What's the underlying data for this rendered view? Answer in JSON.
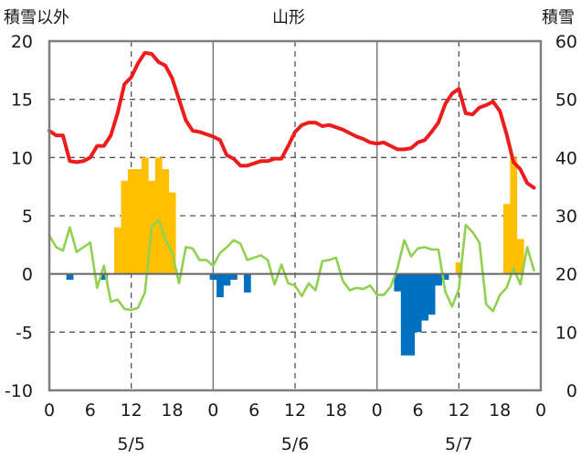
{
  "chart_data": {
    "type": "bar+line",
    "title": "山形",
    "left_axis_label": "積雪以外",
    "right_axis_label": "積雪",
    "left_ylim": [
      -10,
      20
    ],
    "left_ticks": [
      "20",
      "15",
      "10",
      "5",
      "0",
      "-5",
      "-10"
    ],
    "right_ylim": [
      0,
      60
    ],
    "right_ticks": [
      "60",
      "50",
      "40",
      "30",
      "20",
      "10",
      "0"
    ],
    "x_hour_labels": [
      "0",
      "6",
      "12",
      "18",
      "0",
      "6",
      "12",
      "18",
      "0",
      "6",
      "12",
      "18",
      "0"
    ],
    "x_date_labels": [
      "5/5",
      "5/6",
      "5/7"
    ],
    "grid": "dashed lines at 5/10/15/-5 and hours 12; solid vertical at day boundaries",
    "series": [
      {
        "name": "red",
        "axis": "left",
        "color": "#ee1c1c",
        "values": [
          12.3,
          11.9,
          11.9,
          9.7,
          9.6,
          9.7,
          10.0,
          11.0,
          11.0,
          11.9,
          13.8,
          16.3,
          16.9,
          18.1,
          19.0,
          18.9,
          18.2,
          17.9,
          16.8,
          15.0,
          13.2,
          12.3,
          12.2,
          12.0,
          11.8,
          11.5,
          10.2,
          9.9,
          9.3,
          9.3,
          9.5,
          9.7,
          9.7,
          9.9,
          9.9,
          11.0,
          12.2,
          12.8,
          13.0,
          13.0,
          12.7,
          12.8,
          12.6,
          12.4,
          12.1,
          11.8,
          11.6,
          11.3,
          11.2,
          11.3,
          11.0,
          10.7,
          10.7,
          10.8,
          11.3,
          11.5,
          12.2,
          13.0,
          14.6,
          15.5,
          15.9,
          13.8,
          13.7,
          14.3,
          14.5,
          14.8,
          14.0,
          12.0,
          9.6,
          9.0,
          7.8,
          7.4
        ]
      },
      {
        "name": "green",
        "axis": "left",
        "color": "#92d050",
        "values": [
          3.3,
          2.3,
          2.0,
          4.0,
          1.9,
          2.3,
          2.7,
          -1.2,
          0.7,
          -2.4,
          -2.2,
          -3.0,
          -3.1,
          -2.9,
          -1.6,
          4.1,
          4.6,
          3.0,
          1.8,
          -0.8,
          2.3,
          2.2,
          1.2,
          1.2,
          0.7,
          1.8,
          2.3,
          2.9,
          2.6,
          1.2,
          1.4,
          1.6,
          1.2,
          -0.9,
          0.8,
          -0.8,
          -1.0,
          -1.9,
          -0.8,
          -1.4,
          1.1,
          1.2,
          1.4,
          -0.6,
          -1.4,
          -1.2,
          -1.3,
          -1.0,
          -1.8,
          -1.8,
          -1.1,
          0.5,
          2.9,
          1.5,
          2.2,
          2.3,
          2.1,
          2.1,
          -1.5,
          -2.8,
          -1.3,
          4.2,
          3.6,
          2.7,
          -2.6,
          -3.2,
          -1.8,
          -1.2,
          0.5,
          -0.9,
          2.3,
          0.3
        ]
      },
      {
        "name": "yellow bars",
        "axis": "left",
        "color": "#ffc000",
        "hours": [
          10,
          11,
          12,
          13,
          14,
          15,
          16,
          17,
          18,
          60,
          67,
          68,
          69
        ],
        "values": [
          4,
          8,
          9,
          9,
          10,
          8,
          10,
          9,
          7,
          1,
          6,
          10,
          3
        ]
      },
      {
        "name": "blue bars",
        "axis": "left",
        "color": "#0070c0",
        "hours": [
          3,
          8,
          24,
          25,
          26,
          27,
          29,
          51,
          52,
          53,
          54,
          55,
          56,
          57,
          58
        ],
        "values": [
          -0.5,
          -0.5,
          -0.5,
          -2.0,
          -1.0,
          -0.5,
          -1.6,
          -1.5,
          -7.0,
          -7.0,
          -5.0,
          -4.0,
          -3.5,
          -1.0,
          -0.5
        ]
      }
    ]
  }
}
